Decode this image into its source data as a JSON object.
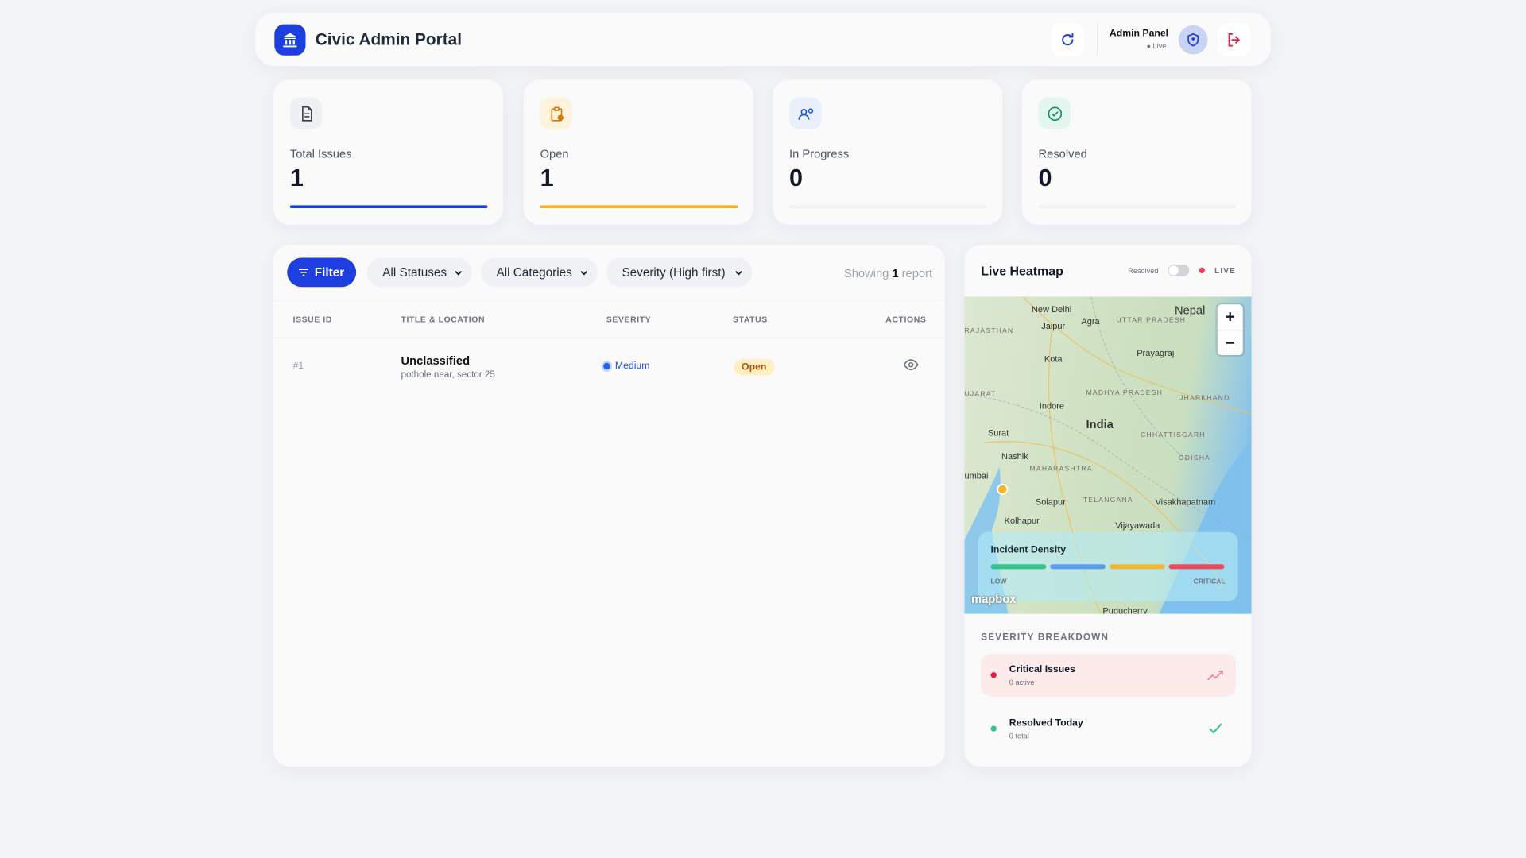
{
  "header": {
    "title": "Civic Admin Portal",
    "admin": "Admin Panel",
    "status": "Live"
  },
  "stats": [
    {
      "label": "Total Issues",
      "value": 1
    },
    {
      "label": "Open",
      "value": 1
    },
    {
      "label": "In Progress",
      "value": 0
    },
    {
      "label": "Resolved",
      "value": 0
    }
  ],
  "filters": {
    "button": "Filter",
    "status": "All Statuses",
    "category": "All Categories",
    "sort": "Severity (High first)",
    "showing": {
      "prefix": "Showing",
      "count": 1,
      "suffix": "report"
    }
  },
  "table": {
    "columns": [
      "ISSUE ID",
      "TITLE & LOCATION",
      "SEVERITY",
      "STATUS",
      "ACTIONS"
    ],
    "rows": [
      {
        "id": "#1",
        "title": "Unclassified",
        "location": "pothole near, sector 25",
        "severity": "Medium",
        "status": "Open"
      }
    ]
  },
  "heatmap": {
    "title": "Live Heatmap",
    "toggle": "Resolved",
    "live": "LIVE",
    "labels": [
      "New Delhi",
      "Agra",
      "Nepal",
      "Jaipur",
      "UTTAR PRADESH",
      "RAJASTHAN",
      "Prayagraj",
      "Kota",
      "UJARAT",
      "Indore",
      "MADHYA PRADESH",
      "JHARKHAND",
      "India",
      "Surat",
      "CHHATTISGARH",
      "Nashik",
      "ODISHA",
      "MAHARASHTRA",
      "umbai",
      "Solapur",
      "TELANGANA",
      "Visakhapatnam",
      "Kolhapur",
      "Vijayawada",
      "Puducherry"
    ],
    "zoom_in": "+",
    "zoom_out": "−",
    "legend": {
      "title": "Incident Density",
      "low": "LOW",
      "high": "CRITICAL"
    },
    "attribution": "mapbox"
  },
  "breakdown": {
    "title": "SEVERITY BREAKDOWN",
    "items": [
      {
        "name": "Critical Issues",
        "detail": "0 active"
      },
      {
        "name": "Resolved Today",
        "detail": "0 total"
      }
    ]
  }
}
